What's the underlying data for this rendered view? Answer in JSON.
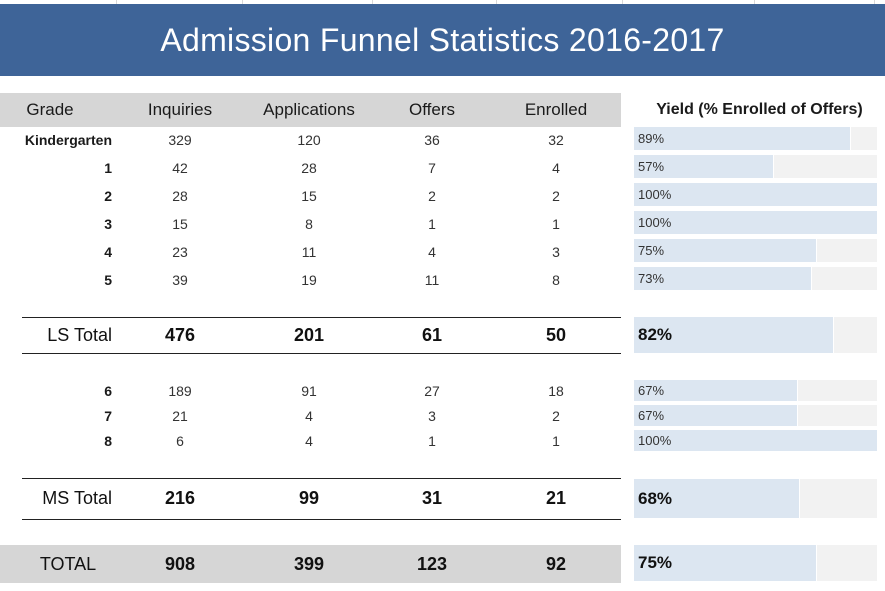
{
  "title": "Admission Funnel Statistics 2016-2017",
  "headers": [
    "Grade",
    "Inquiries",
    "Applications",
    "Offers",
    "Enrolled"
  ],
  "yield_header": "Yield (% Enrolled of Offers)",
  "lower_school": [
    {
      "grade": "Kindergarten",
      "inquiries": "329",
      "applications": "120",
      "offers": "36",
      "enrolled": "32",
      "yield": "89%",
      "yield_value": 0.89
    },
    {
      "grade": "1",
      "inquiries": "42",
      "applications": "28",
      "offers": "7",
      "enrolled": "4",
      "yield": "57%",
      "yield_value": 0.57
    },
    {
      "grade": "2",
      "inquiries": "28",
      "applications": "15",
      "offers": "2",
      "enrolled": "2",
      "yield": "100%",
      "yield_value": 1.0
    },
    {
      "grade": "3",
      "inquiries": "15",
      "applications": "8",
      "offers": "1",
      "enrolled": "1",
      "yield": "100%",
      "yield_value": 1.0
    },
    {
      "grade": "4",
      "inquiries": "23",
      "applications": "11",
      "offers": "4",
      "enrolled": "3",
      "yield": "75%",
      "yield_value": 0.75
    },
    {
      "grade": "5",
      "inquiries": "39",
      "applications": "19",
      "offers": "11",
      "enrolled": "8",
      "yield": "73%",
      "yield_value": 0.73
    }
  ],
  "ls_total": {
    "label": "LS Total",
    "inquiries": "476",
    "applications": "201",
    "offers": "61",
    "enrolled": "50",
    "yield": "82%",
    "yield_value": 0.82
  },
  "middle_school": [
    {
      "grade": "6",
      "inquiries": "189",
      "applications": "91",
      "offers": "27",
      "enrolled": "18",
      "yield": "67%",
      "yield_value": 0.67
    },
    {
      "grade": "7",
      "inquiries": "21",
      "applications": "4",
      "offers": "3",
      "enrolled": "2",
      "yield": "67%",
      "yield_value": 0.67
    },
    {
      "grade": "8",
      "inquiries": "6",
      "applications": "4",
      "offers": "1",
      "enrolled": "1",
      "yield": "100%",
      "yield_value": 1.0
    }
  ],
  "ms_total": {
    "label": "MS Total",
    "inquiries": "216",
    "applications": "99",
    "offers": "31",
    "enrolled": "21",
    "yield": "68%",
    "yield_value": 0.68
  },
  "grand_total": {
    "label": "TOTAL",
    "inquiries": "908",
    "applications": "399",
    "offers": "123",
    "enrolled": "92",
    "yield": "75%",
    "yield_value": 0.75
  },
  "colors": {
    "banner": "#3e6498",
    "header_band": "#d6d6d6",
    "yield_fill": "#dce6f1",
    "yield_track": "#f2f2f2"
  }
}
